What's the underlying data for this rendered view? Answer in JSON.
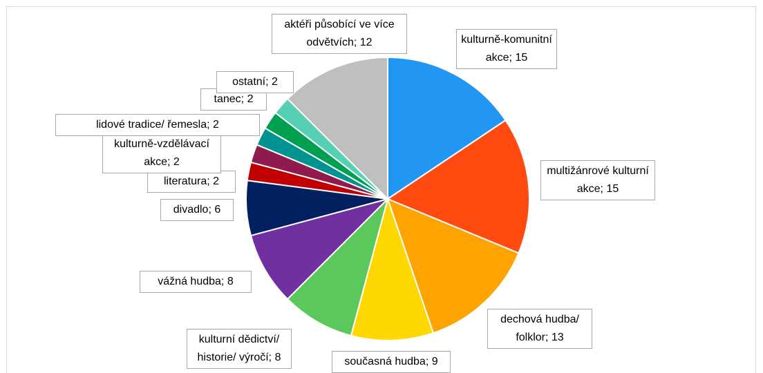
{
  "chart_data": {
    "type": "pie",
    "categories": [
      "kulturně-komunitní akce",
      "multižánrové kulturní akce",
      "dechová hudba/ folklor",
      "současná hudba",
      "kulturní dědictví/ historie/ výročí",
      "vážná hudba",
      "divadlo",
      "literatura",
      "kulturně-vzdělávací akce",
      "lidové tradice/ řemesla",
      "tanec",
      "ostatní",
      "aktéři působící ve více odvětvích"
    ],
    "values": [
      15,
      15,
      13,
      9,
      8,
      8,
      6,
      2,
      2,
      2,
      2,
      2,
      12
    ],
    "colors": [
      "#2196f3",
      "#ff4b10",
      "#ffa300",
      "#ffd800",
      "#5bc85b",
      "#7030a0",
      "#002060",
      "#c00000",
      "#8e1a4e",
      "#00938f",
      "#00a050",
      "#55d0b4",
      "#bfbfbf"
    ],
    "label_separator": "; "
  }
}
